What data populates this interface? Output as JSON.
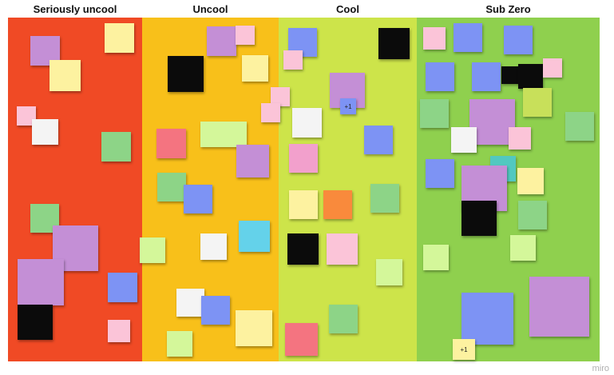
{
  "columns": [
    {
      "title": "Seriously uncool",
      "color": "#f04a25"
    },
    {
      "title": "Uncool",
      "color": "#f8c01a"
    },
    {
      "title": "Cool",
      "color": "#cde44a"
    },
    {
      "title": "Sub Zero",
      "color": "#8fd04e"
    }
  ],
  "votes": [
    "+1",
    "+1"
  ],
  "watermark": "miro",
  "palette": {
    "purple": "#c48fd6",
    "yellow": "#fdf2a0",
    "pink": "#fbc4d8",
    "white": "#f4f4f4",
    "green": "#8dd487",
    "blue": "#7d93f4",
    "salmon": "#f47480",
    "lime": "#d4f79a",
    "cyan": "#64d2ea",
    "orange": "#f98a3c",
    "teal": "#52c8c0",
    "black": "#0b0b0b"
  }
}
